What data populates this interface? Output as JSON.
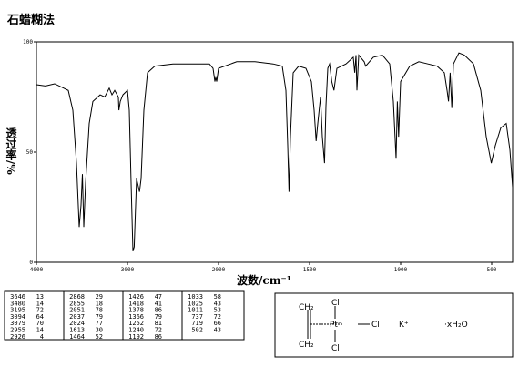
{
  "chart_data": {
    "type": "line",
    "title": "石蜡糊法",
    "x_label": "波数/cm⁻¹",
    "y_label": "透过率/%",
    "xlim": [
      4000,
      385
    ],
    "x_break": 2000,
    "ylim": [
      0,
      100
    ],
    "xticks": [
      4000,
      3000,
      2000,
      1500,
      1000,
      500
    ],
    "yticks": [
      0,
      50,
      100
    ],
    "series": [
      {
        "color": "#000000",
        "x": [
          4000,
          3900,
          3800,
          3700,
          3650,
          3600,
          3560,
          3530,
          3510,
          3495,
          3480,
          3460,
          3420,
          3380,
          3300,
          3250,
          3200,
          3170,
          3140,
          3100,
          3094,
          3079,
          3050,
          3000,
          2980,
          2960,
          2940,
          2926,
          2900,
          2868,
          2850,
          2820,
          2780,
          2700,
          2500,
          2300,
          2100,
          2060,
          2040,
          2030,
          2020,
          2000,
          1900,
          1800,
          1700,
          1650,
          1630,
          1620,
          1613,
          1605,
          1590,
          1560,
          1520,
          1490,
          1475,
          1464,
          1455,
          1440,
          1430,
          1418,
          1410,
          1400,
          1390,
          1378,
          1366,
          1350,
          1300,
          1260,
          1252,
          1245,
          1240,
          1230,
          1200,
          1192,
          1150,
          1100,
          1060,
          1040,
          1033,
          1025,
          1018,
          1011,
          1000,
          950,
          900,
          850,
          800,
          760,
          745,
          737,
          728,
          719,
          710,
          680,
          650,
          600,
          560,
          530,
          502,
          480,
          450,
          420,
          400,
          385
        ],
        "values": [
          80.6,
          80,
          81,
          79,
          78,
          69,
          45,
          16,
          26,
          40,
          16,
          36,
          63,
          73,
          76,
          75,
          79,
          76,
          78,
          75,
          69,
          73,
          76,
          78,
          69,
          36,
          5,
          7,
          38,
          32,
          38,
          69,
          86,
          89,
          90,
          90,
          90,
          88,
          82,
          84,
          82,
          88,
          91,
          91,
          90,
          89,
          78,
          53,
          32,
          57,
          86,
          89,
          88,
          82,
          69,
          55,
          63,
          75,
          57,
          45,
          71,
          88,
          90,
          82,
          78,
          88,
          90,
          93,
          86,
          94,
          78,
          94,
          91,
          89,
          93,
          94,
          90,
          73,
          61,
          47,
          73,
          57,
          82,
          89,
          91,
          90,
          89,
          86,
          78,
          73,
          86,
          70,
          90,
          95,
          94,
          90,
          78,
          57,
          45,
          53,
          61,
          63,
          51,
          34
        ]
      }
    ]
  },
  "peak_table": {
    "columns": [
      [
        [
          3646,
          13
        ],
        [
          3480,
          14
        ],
        [
          3195,
          72
        ],
        [
          3094,
          64
        ],
        [
          3079,
          70
        ],
        [
          2955,
          14
        ],
        [
          2926,
          4
        ]
      ],
      [
        [
          2868,
          29
        ],
        [
          2855,
          18
        ],
        [
          2051,
          78
        ],
        [
          2037,
          79
        ],
        [
          2024,
          77
        ],
        [
          1613,
          30
        ],
        [
          1464,
          52
        ]
      ],
      [
        [
          1426,
          47
        ],
        [
          1418,
          41
        ],
        [
          1378,
          86
        ],
        [
          1366,
          79
        ],
        [
          1252,
          81
        ],
        [
          1240,
          72
        ],
        [
          1192,
          86
        ]
      ],
      [
        [
          1033,
          58
        ],
        [
          1025,
          43
        ],
        [
          1011,
          53
        ],
        [
          737,
          72
        ],
        [
          719,
          66
        ],
        [
          502,
          43
        ]
      ]
    ]
  },
  "structure": {
    "top_ch2": "CH₂",
    "bottom_ch2": "CH₂",
    "top_cl": "Cl",
    "bottom_cl": "Cl",
    "right_cl": "Cl",
    "metal": "Pt⁻",
    "cation": "K⁺",
    "water": "·xH₂O"
  }
}
